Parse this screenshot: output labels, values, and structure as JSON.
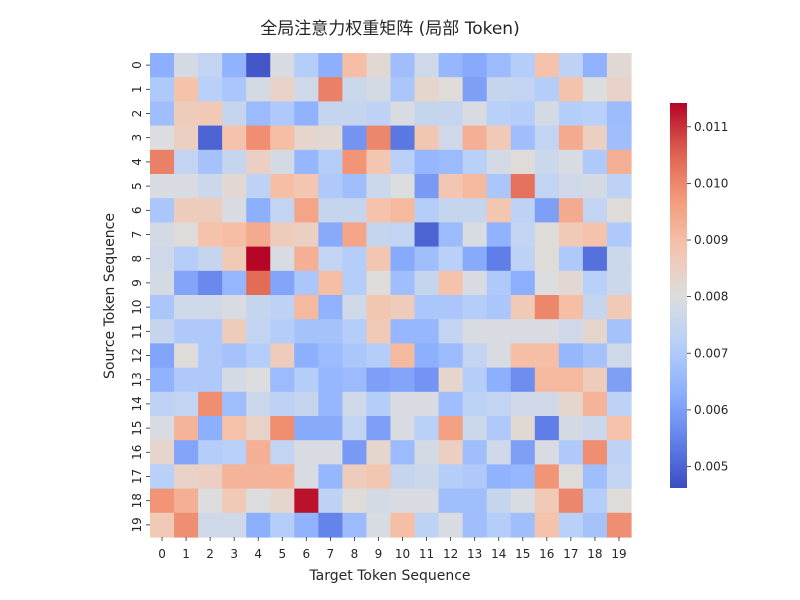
{
  "chart_data": {
    "type": "heatmap",
    "title": "全局注意力权重矩阵 (局部 Token)",
    "xlabel": "Target Token Sequence",
    "ylabel": "Source Token Sequence",
    "x_tick_labels": [
      "0",
      "1",
      "2",
      "3",
      "4",
      "5",
      "6",
      "7",
      "8",
      "9",
      "10",
      "11",
      "12",
      "13",
      "14",
      "15",
      "16",
      "17",
      "18",
      "19"
    ],
    "y_tick_labels": [
      "0",
      "1",
      "2",
      "3",
      "4",
      "5",
      "6",
      "7",
      "8",
      "9",
      "10",
      "11",
      "12",
      "13",
      "14",
      "15",
      "16",
      "17",
      "18",
      "19"
    ],
    "colormap": "coolwarm",
    "color_range": [
      0.00462,
      0.01142
    ],
    "colorbar_ticks": [
      0.005,
      0.006,
      0.007,
      0.008,
      0.009,
      0.01,
      0.011
    ],
    "colorbar_tick_labels": [
      "0.005",
      "0.006",
      "0.007",
      "0.008",
      "0.009",
      "0.010",
      "0.011"
    ],
    "values": [
      [
        0.0063,
        0.0078,
        0.0074,
        0.0064,
        0.0048,
        0.0079,
        0.0071,
        0.0063,
        0.009,
        0.0082,
        0.0067,
        0.0077,
        0.0065,
        0.0062,
        0.0066,
        0.0071,
        0.0089,
        0.0073,
        0.0064,
        0.0082
      ],
      [
        0.007,
        0.0089,
        0.0072,
        0.0069,
        0.0078,
        0.0084,
        0.0077,
        0.0101,
        0.0076,
        0.0078,
        0.0069,
        0.0083,
        0.0081,
        0.006,
        0.0075,
        0.0074,
        0.0071,
        0.0089,
        0.008,
        0.0084
      ],
      [
        0.0067,
        0.0086,
        0.0087,
        0.0075,
        0.0066,
        0.007,
        0.0064,
        0.0075,
        0.0075,
        0.0073,
        0.0079,
        0.0075,
        0.0075,
        0.0079,
        0.0072,
        0.0071,
        0.0078,
        0.0071,
        0.0072,
        0.0066
      ],
      [
        0.008,
        0.0085,
        0.005,
        0.0089,
        0.0099,
        0.009,
        0.0083,
        0.0082,
        0.0058,
        0.01,
        0.0053,
        0.0088,
        0.0077,
        0.0093,
        0.0087,
        0.0067,
        0.0074,
        0.0094,
        0.0085,
        0.0067
      ],
      [
        0.0101,
        0.0074,
        0.0068,
        0.0075,
        0.0085,
        0.0078,
        0.0065,
        0.0071,
        0.0098,
        0.0088,
        0.0072,
        0.0065,
        0.0066,
        0.0072,
        0.0078,
        0.0081,
        0.0076,
        0.0079,
        0.007,
        0.0093
      ],
      [
        0.0079,
        0.0079,
        0.0076,
        0.0082,
        0.0073,
        0.009,
        0.0088,
        0.007,
        0.0067,
        0.0076,
        0.008,
        0.0059,
        0.0088,
        0.0091,
        0.0069,
        0.0103,
        0.0074,
        0.0077,
        0.0078,
        0.0073
      ],
      [
        0.0069,
        0.0086,
        0.0086,
        0.0079,
        0.0063,
        0.0074,
        0.0095,
        0.0075,
        0.0075,
        0.0089,
        0.0091,
        0.0071,
        0.0075,
        0.0075,
        0.0088,
        0.0073,
        0.006,
        0.0094,
        0.0074,
        0.0081
      ],
      [
        0.0078,
        0.0081,
        0.0089,
        0.009,
        0.0094,
        0.0086,
        0.0085,
        0.0062,
        0.0095,
        0.0075,
        0.0074,
        0.005,
        0.0066,
        0.0079,
        0.0064,
        0.0074,
        0.0081,
        0.0087,
        0.0089,
        0.007
      ],
      [
        0.0077,
        0.0071,
        0.0075,
        0.0087,
        0.0114,
        0.0079,
        0.0093,
        0.0074,
        0.0071,
        0.0088,
        0.0062,
        0.0067,
        0.0072,
        0.0062,
        0.0054,
        0.0073,
        0.0081,
        0.007,
        0.0052,
        0.0076
      ],
      [
        0.0078,
        0.0061,
        0.0056,
        0.0065,
        0.0104,
        0.0061,
        0.0069,
        0.009,
        0.0071,
        0.0081,
        0.0067,
        0.0075,
        0.0089,
        0.0079,
        0.007,
        0.0063,
        0.008,
        0.0082,
        0.0072,
        0.0076
      ],
      [
        0.0069,
        0.0077,
        0.0077,
        0.0079,
        0.0075,
        0.0073,
        0.0091,
        0.0064,
        0.0077,
        0.0088,
        0.0086,
        0.0069,
        0.0069,
        0.0071,
        0.0069,
        0.0087,
        0.01,
        0.009,
        0.0075,
        0.0087
      ],
      [
        0.0075,
        0.007,
        0.007,
        0.0086,
        0.0074,
        0.0071,
        0.0068,
        0.0068,
        0.0071,
        0.0087,
        0.0065,
        0.0065,
        0.0074,
        0.0079,
        0.0079,
        0.0079,
        0.0079,
        0.0077,
        0.0083,
        0.0068
      ],
      [
        0.0061,
        0.0081,
        0.007,
        0.0068,
        0.0071,
        0.0086,
        0.0063,
        0.0066,
        0.0069,
        0.0071,
        0.0091,
        0.0063,
        0.0066,
        0.0074,
        0.0079,
        0.009,
        0.009,
        0.0065,
        0.0068,
        0.0077
      ],
      [
        0.0064,
        0.007,
        0.007,
        0.0078,
        0.008,
        0.0066,
        0.0071,
        0.0065,
        0.0066,
        0.006,
        0.0061,
        0.0058,
        0.0083,
        0.0071,
        0.0063,
        0.0057,
        0.0091,
        0.0091,
        0.0086,
        0.006
      ],
      [
        0.0073,
        0.0074,
        0.0099,
        0.0067,
        0.0076,
        0.0073,
        0.0075,
        0.0065,
        0.0077,
        0.0071,
        0.0079,
        0.0079,
        0.0067,
        0.0073,
        0.0074,
        0.0077,
        0.0077,
        0.0083,
        0.0092,
        0.0073
      ],
      [
        0.0079,
        0.0092,
        0.0063,
        0.0089,
        0.0084,
        0.0099,
        0.0062,
        0.0062,
        0.0074,
        0.006,
        0.0079,
        0.0072,
        0.0096,
        0.0076,
        0.007,
        0.0082,
        0.0054,
        0.0078,
        0.0076,
        0.0089
      ],
      [
        0.0083,
        0.0061,
        0.0071,
        0.0072,
        0.0093,
        0.0074,
        0.0079,
        0.0079,
        0.0059,
        0.0083,
        0.0066,
        0.0078,
        0.0085,
        0.0067,
        0.0077,
        0.006,
        0.0079,
        0.007,
        0.0099,
        0.0073
      ],
      [
        0.0072,
        0.0084,
        0.0085,
        0.0092,
        0.0092,
        0.0092,
        0.0079,
        0.0065,
        0.0086,
        0.0088,
        0.0075,
        0.0076,
        0.0071,
        0.007,
        0.0064,
        0.0065,
        0.0098,
        0.0081,
        0.0067,
        0.0074
      ],
      [
        0.0098,
        0.0093,
        0.008,
        0.0087,
        0.008,
        0.0083,
        0.0113,
        0.0073,
        0.0081,
        0.0078,
        0.0079,
        0.0079,
        0.0067,
        0.0067,
        0.0075,
        0.0079,
        0.0087,
        0.01,
        0.0071,
        0.0081
      ],
      [
        0.0087,
        0.0099,
        0.0077,
        0.0077,
        0.0063,
        0.0071,
        0.0064,
        0.0055,
        0.0066,
        0.0079,
        0.009,
        0.0073,
        0.0079,
        0.0067,
        0.0071,
        0.0067,
        0.0089,
        0.0072,
        0.0068,
        0.0099
      ]
    ]
  }
}
